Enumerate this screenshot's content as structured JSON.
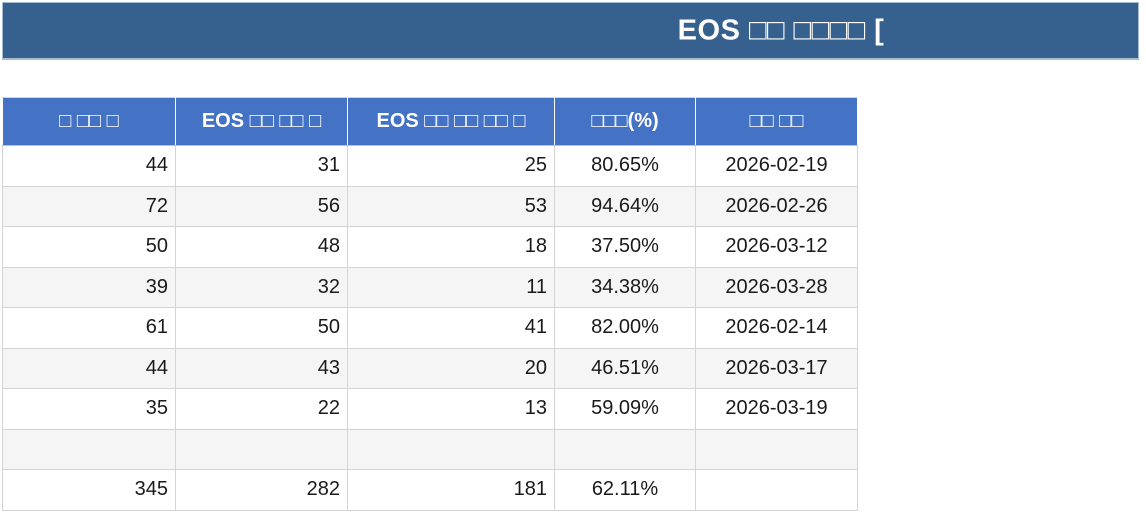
{
  "title_bar": {
    "title": "EOS □□ □□□□ ["
  },
  "colors": {
    "title_bar_bg": "#36618E",
    "title_bar_border": "#A6BCD4",
    "table_header_bg": "#4472C4",
    "table_header_text": "#FFFFFF",
    "zebra_row_bg": "#F5F5F5",
    "cell_border": "#D4D4D4",
    "body_text": "#1A1A1A"
  },
  "chart_data": {
    "type": "table",
    "title": "EOS □□ □□□□ [",
    "legend_position": "none",
    "grid": "on",
    "columns": [
      {
        "label": "□ □□ □",
        "align": "right"
      },
      {
        "label": "EOS □□ □□ □",
        "align": "right"
      },
      {
        "label": "EOS □□ □□ □□ □",
        "align": "right"
      },
      {
        "label": "□□□(%)",
        "align": "center"
      },
      {
        "label": "□□ □□",
        "align": "center"
      }
    ],
    "rows": [
      [
        "44",
        "31",
        "25",
        "80.65%",
        "2026-02-19"
      ],
      [
        "72",
        "56",
        "53",
        "94.64%",
        "2026-02-26"
      ],
      [
        "50",
        "48",
        "18",
        "37.50%",
        "2026-03-12"
      ],
      [
        "39",
        "32",
        "11",
        "34.38%",
        "2026-03-28"
      ],
      [
        "61",
        "50",
        "41",
        "82.00%",
        "2026-02-14"
      ],
      [
        "44",
        "43",
        "20",
        "46.51%",
        "2026-03-17"
      ],
      [
        "35",
        "22",
        "13",
        "59.09%",
        "2026-03-19"
      ],
      [
        "",
        "",
        "",
        "",
        ""
      ],
      [
        "345",
        "282",
        "181",
        "62.11%",
        ""
      ]
    ]
  }
}
